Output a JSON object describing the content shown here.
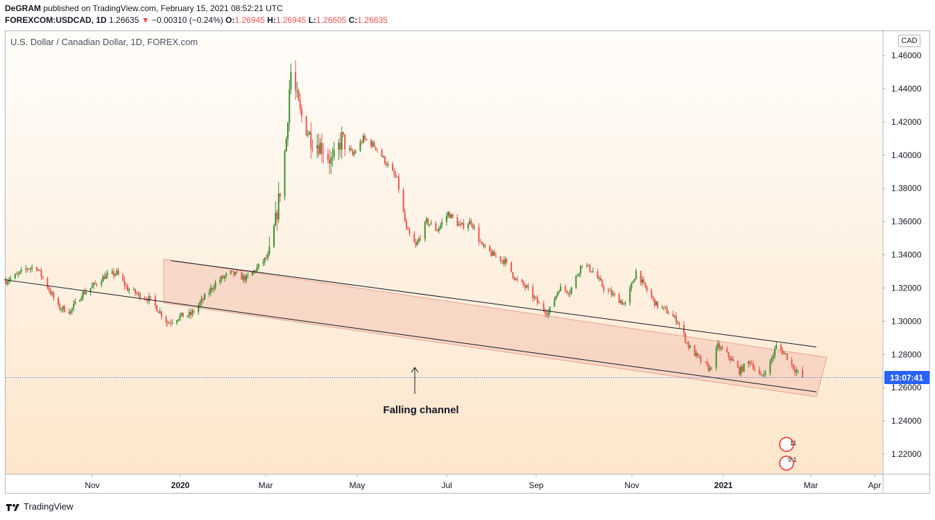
{
  "header": {
    "publisher": "DeGRAM",
    "published_text": "published on TradingView.com, February 15, 2021 08:52:21 UTC",
    "symbol": "FOREXCOM:USDCAD, 1D",
    "last": "1.26635",
    "change": "−0.00310 (−0.24%)",
    "o_label": "O:",
    "o_value": "1.26945",
    "h_label": "H:",
    "h_value": "1.26945",
    "l_label": "L:",
    "l_value": "1.26605",
    "c_label": "C:",
    "c_value": "1.26635"
  },
  "chart_title": "U.S. Dollar / Canadian Dollar, 1D, FOREX.com",
  "currency": "CAD",
  "price_tag": "13:07:41",
  "annotation": "Falling channel",
  "events": [
    "11",
    "9 1"
  ],
  "footer_brand": "TradingView",
  "colors": {
    "up": "#26a69a",
    "up_body": "#3d8c2f",
    "down": "#ef5350",
    "channel_fill": "#f2c4b4",
    "price_tag_bg": "#2962ff"
  },
  "chart_data": {
    "type": "candlestick",
    "title": "U.S. Dollar / Canadian Dollar, 1D, FOREX.com",
    "y_axis": {
      "ticks": [
        1.22,
        1.24,
        1.26,
        1.28,
        1.3,
        1.32,
        1.34,
        1.36,
        1.38,
        1.4,
        1.42,
        1.44,
        1.46
      ],
      "ylim": [
        1.206,
        1.475
      ]
    },
    "x_axis": {
      "tick_labels": [
        "Nov",
        "2020",
        "Mar",
        "May",
        "Jul",
        "Sep",
        "Nov",
        "2021",
        "Mar",
        "Apr"
      ]
    },
    "last_price": 1.26635,
    "price_path": [
      [
        "2019-09-17",
        1.3245
      ],
      [
        "2019-09-24",
        1.3275
      ],
      [
        "2019-10-01",
        1.332
      ],
      [
        "2019-10-07",
        1.3325
      ],
      [
        "2019-10-14",
        1.321
      ],
      [
        "2019-10-21",
        1.3085
      ],
      [
        "2019-10-29",
        1.306
      ],
      [
        "2019-11-05",
        1.316
      ],
      [
        "2019-11-13",
        1.3215
      ],
      [
        "2019-11-20",
        1.327
      ],
      [
        "2019-11-28",
        1.329
      ],
      [
        "2019-12-05",
        1.3195
      ],
      [
        "2019-12-13",
        1.3155
      ],
      [
        "2019-12-20",
        1.313
      ],
      [
        "2019-12-31",
        1.299
      ],
      [
        "2020-01-08",
        1.303
      ],
      [
        "2020-01-15",
        1.304
      ],
      [
        "2020-01-22",
        1.312
      ],
      [
        "2020-02-01",
        1.324
      ],
      [
        "2020-02-10",
        1.329
      ],
      [
        "2020-02-20",
        1.3255
      ],
      [
        "2020-02-28",
        1.333
      ],
      [
        "2020-03-06",
        1.34
      ],
      [
        "2020-03-10",
        1.36
      ],
      [
        "2020-03-14",
        1.385
      ],
      [
        "2020-03-17",
        1.41
      ],
      [
        "2020-03-19",
        1.44
      ],
      [
        "2020-03-20",
        1.45
      ],
      [
        "2020-03-26",
        1.425
      ],
      [
        "2020-04-02",
        1.41
      ],
      [
        "2020-04-09",
        1.405
      ],
      [
        "2020-04-16",
        1.395
      ],
      [
        "2020-04-22",
        1.41
      ],
      [
        "2020-04-29",
        1.4
      ],
      [
        "2020-05-06",
        1.41
      ],
      [
        "2020-05-14",
        1.405
      ],
      [
        "2020-05-21",
        1.395
      ],
      [
        "2020-05-28",
        1.385
      ],
      [
        "2020-06-03",
        1.355
      ],
      [
        "2020-06-09",
        1.345
      ],
      [
        "2020-06-16",
        1.36
      ],
      [
        "2020-06-23",
        1.355
      ],
      [
        "2020-06-30",
        1.365
      ],
      [
        "2020-07-08",
        1.357
      ],
      [
        "2020-07-15",
        1.36
      ],
      [
        "2020-07-22",
        1.345
      ],
      [
        "2020-07-29",
        1.34
      ],
      [
        "2020-08-06",
        1.336
      ],
      [
        "2020-08-13",
        1.325
      ],
      [
        "2020-08-20",
        1.32
      ],
      [
        "2020-08-28",
        1.31
      ],
      [
        "2020-09-03",
        1.305
      ],
      [
        "2020-09-10",
        1.32
      ],
      [
        "2020-09-17",
        1.318
      ],
      [
        "2020-09-25",
        1.335
      ],
      [
        "2020-10-02",
        1.33
      ],
      [
        "2020-10-09",
        1.32
      ],
      [
        "2020-10-16",
        1.315
      ],
      [
        "2020-10-23",
        1.31
      ],
      [
        "2020-10-30",
        1.33
      ],
      [
        "2020-11-05",
        1.32
      ],
      [
        "2020-11-12",
        1.31
      ],
      [
        "2020-11-19",
        1.306
      ],
      [
        "2020-11-26",
        1.3
      ],
      [
        "2020-12-03",
        1.285
      ],
      [
        "2020-12-10",
        1.277
      ],
      [
        "2020-12-17",
        1.271
      ],
      [
        "2020-12-22",
        1.285
      ],
      [
        "2020-12-29",
        1.279
      ],
      [
        "2021-01-05",
        1.27
      ],
      [
        "2021-01-12",
        1.276
      ],
      [
        "2021-01-19",
        1.266
      ],
      [
        "2021-01-25",
        1.275
      ],
      [
        "2021-01-29",
        1.285
      ],
      [
        "2021-02-04",
        1.28
      ],
      [
        "2021-02-10",
        1.271
      ],
      [
        "2021-02-15",
        1.2663
      ]
    ],
    "channel_lines": [
      {
        "name": "upper",
        "from": [
          "2020-01-02",
          1.3365
        ],
        "to": [
          "2021-02-24",
          1.2845
        ]
      },
      {
        "name": "lower",
        "from": [
          "2020-01-02",
          1.3085
        ],
        "to": [
          "2021-02-24",
          1.2575
        ]
      }
    ],
    "long_trendline": {
      "from": [
        "2019-09-16",
        1.325
      ],
      "to": [
        "2021-02-24",
        1.2575
      ]
    }
  }
}
